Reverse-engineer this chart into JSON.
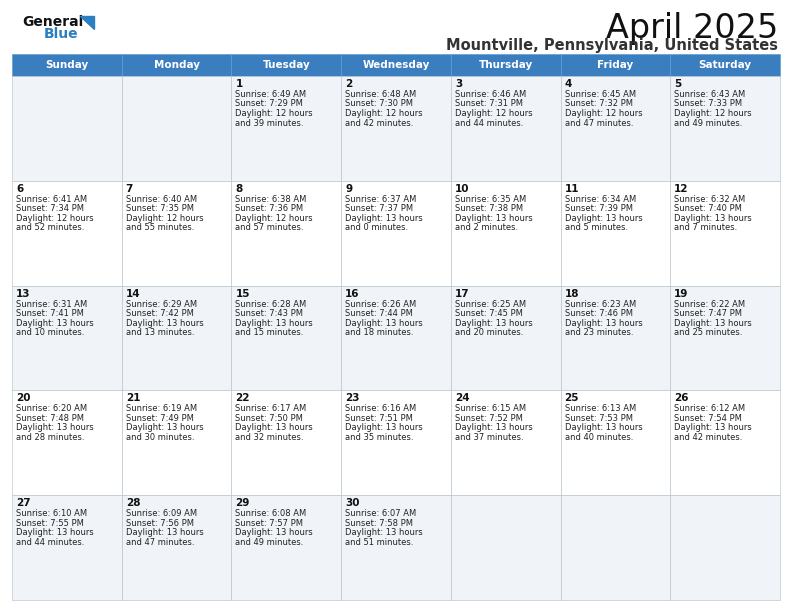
{
  "title": "April 2025",
  "subtitle": "Mountville, Pennsylvania, United States",
  "header_bg": "#3a7ebf",
  "header_text": "#ffffff",
  "cell_bg_odd": "#f0f4f8",
  "cell_bg_even": "#ffffff",
  "border_color": "#b0bec5",
  "day_headers": [
    "Sunday",
    "Monday",
    "Tuesday",
    "Wednesday",
    "Thursday",
    "Friday",
    "Saturday"
  ],
  "title_color": "#111111",
  "subtitle_color": "#333333",
  "day_number_color": "#111111",
  "cell_text_color": "#222222",
  "logo_general_color": "#111111",
  "logo_blue_color": "#2b7fc0",
  "calendar": [
    [
      {
        "day": "",
        "lines": []
      },
      {
        "day": "",
        "lines": []
      },
      {
        "day": "1",
        "lines": [
          "Sunrise: 6:49 AM",
          "Sunset: 7:29 PM",
          "Daylight: 12 hours",
          "and 39 minutes."
        ]
      },
      {
        "day": "2",
        "lines": [
          "Sunrise: 6:48 AM",
          "Sunset: 7:30 PM",
          "Daylight: 12 hours",
          "and 42 minutes."
        ]
      },
      {
        "day": "3",
        "lines": [
          "Sunrise: 6:46 AM",
          "Sunset: 7:31 PM",
          "Daylight: 12 hours",
          "and 44 minutes."
        ]
      },
      {
        "day": "4",
        "lines": [
          "Sunrise: 6:45 AM",
          "Sunset: 7:32 PM",
          "Daylight: 12 hours",
          "and 47 minutes."
        ]
      },
      {
        "day": "5",
        "lines": [
          "Sunrise: 6:43 AM",
          "Sunset: 7:33 PM",
          "Daylight: 12 hours",
          "and 49 minutes."
        ]
      }
    ],
    [
      {
        "day": "6",
        "lines": [
          "Sunrise: 6:41 AM",
          "Sunset: 7:34 PM",
          "Daylight: 12 hours",
          "and 52 minutes."
        ]
      },
      {
        "day": "7",
        "lines": [
          "Sunrise: 6:40 AM",
          "Sunset: 7:35 PM",
          "Daylight: 12 hours",
          "and 55 minutes."
        ]
      },
      {
        "day": "8",
        "lines": [
          "Sunrise: 6:38 AM",
          "Sunset: 7:36 PM",
          "Daylight: 12 hours",
          "and 57 minutes."
        ]
      },
      {
        "day": "9",
        "lines": [
          "Sunrise: 6:37 AM",
          "Sunset: 7:37 PM",
          "Daylight: 13 hours",
          "and 0 minutes."
        ]
      },
      {
        "day": "10",
        "lines": [
          "Sunrise: 6:35 AM",
          "Sunset: 7:38 PM",
          "Daylight: 13 hours",
          "and 2 minutes."
        ]
      },
      {
        "day": "11",
        "lines": [
          "Sunrise: 6:34 AM",
          "Sunset: 7:39 PM",
          "Daylight: 13 hours",
          "and 5 minutes."
        ]
      },
      {
        "day": "12",
        "lines": [
          "Sunrise: 6:32 AM",
          "Sunset: 7:40 PM",
          "Daylight: 13 hours",
          "and 7 minutes."
        ]
      }
    ],
    [
      {
        "day": "13",
        "lines": [
          "Sunrise: 6:31 AM",
          "Sunset: 7:41 PM",
          "Daylight: 13 hours",
          "and 10 minutes."
        ]
      },
      {
        "day": "14",
        "lines": [
          "Sunrise: 6:29 AM",
          "Sunset: 7:42 PM",
          "Daylight: 13 hours",
          "and 13 minutes."
        ]
      },
      {
        "day": "15",
        "lines": [
          "Sunrise: 6:28 AM",
          "Sunset: 7:43 PM",
          "Daylight: 13 hours",
          "and 15 minutes."
        ]
      },
      {
        "day": "16",
        "lines": [
          "Sunrise: 6:26 AM",
          "Sunset: 7:44 PM",
          "Daylight: 13 hours",
          "and 18 minutes."
        ]
      },
      {
        "day": "17",
        "lines": [
          "Sunrise: 6:25 AM",
          "Sunset: 7:45 PM",
          "Daylight: 13 hours",
          "and 20 minutes."
        ]
      },
      {
        "day": "18",
        "lines": [
          "Sunrise: 6:23 AM",
          "Sunset: 7:46 PM",
          "Daylight: 13 hours",
          "and 23 minutes."
        ]
      },
      {
        "day": "19",
        "lines": [
          "Sunrise: 6:22 AM",
          "Sunset: 7:47 PM",
          "Daylight: 13 hours",
          "and 25 minutes."
        ]
      }
    ],
    [
      {
        "day": "20",
        "lines": [
          "Sunrise: 6:20 AM",
          "Sunset: 7:48 PM",
          "Daylight: 13 hours",
          "and 28 minutes."
        ]
      },
      {
        "day": "21",
        "lines": [
          "Sunrise: 6:19 AM",
          "Sunset: 7:49 PM",
          "Daylight: 13 hours",
          "and 30 minutes."
        ]
      },
      {
        "day": "22",
        "lines": [
          "Sunrise: 6:17 AM",
          "Sunset: 7:50 PM",
          "Daylight: 13 hours",
          "and 32 minutes."
        ]
      },
      {
        "day": "23",
        "lines": [
          "Sunrise: 6:16 AM",
          "Sunset: 7:51 PM",
          "Daylight: 13 hours",
          "and 35 minutes."
        ]
      },
      {
        "day": "24",
        "lines": [
          "Sunrise: 6:15 AM",
          "Sunset: 7:52 PM",
          "Daylight: 13 hours",
          "and 37 minutes."
        ]
      },
      {
        "day": "25",
        "lines": [
          "Sunrise: 6:13 AM",
          "Sunset: 7:53 PM",
          "Daylight: 13 hours",
          "and 40 minutes."
        ]
      },
      {
        "day": "26",
        "lines": [
          "Sunrise: 6:12 AM",
          "Sunset: 7:54 PM",
          "Daylight: 13 hours",
          "and 42 minutes."
        ]
      }
    ],
    [
      {
        "day": "27",
        "lines": [
          "Sunrise: 6:10 AM",
          "Sunset: 7:55 PM",
          "Daylight: 13 hours",
          "and 44 minutes."
        ]
      },
      {
        "day": "28",
        "lines": [
          "Sunrise: 6:09 AM",
          "Sunset: 7:56 PM",
          "Daylight: 13 hours",
          "and 47 minutes."
        ]
      },
      {
        "day": "29",
        "lines": [
          "Sunrise: 6:08 AM",
          "Sunset: 7:57 PM",
          "Daylight: 13 hours",
          "and 49 minutes."
        ]
      },
      {
        "day": "30",
        "lines": [
          "Sunrise: 6:07 AM",
          "Sunset: 7:58 PM",
          "Daylight: 13 hours",
          "and 51 minutes."
        ]
      },
      {
        "day": "",
        "lines": []
      },
      {
        "day": "",
        "lines": []
      },
      {
        "day": "",
        "lines": []
      }
    ]
  ]
}
